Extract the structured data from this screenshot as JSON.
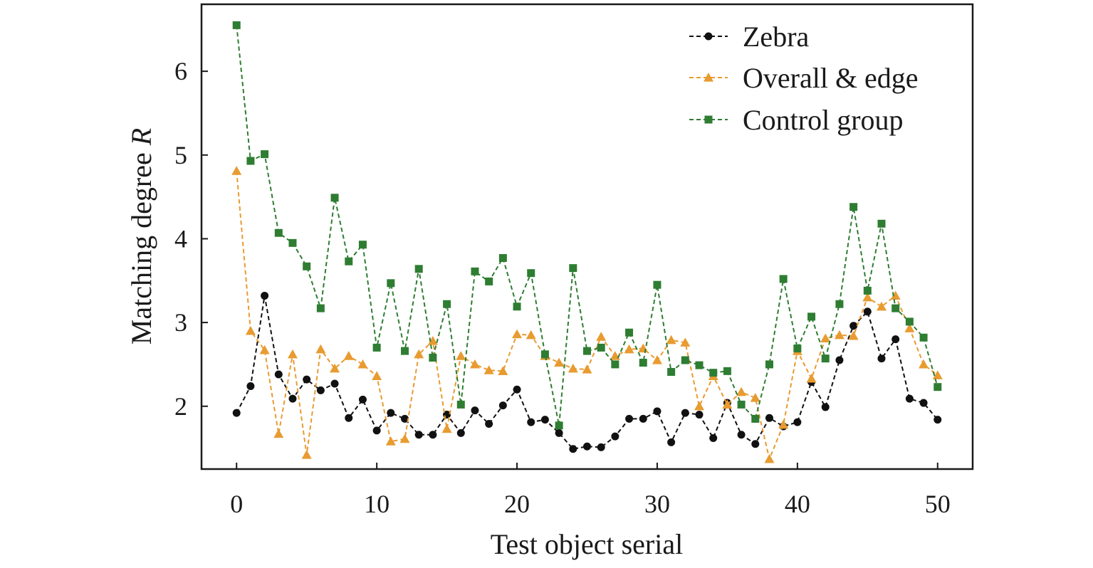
{
  "chart_data": {
    "type": "line",
    "xlabel": "Test object serial",
    "ylabel": "Matching degree ",
    "ylabel_symbol": "R",
    "xlim": [
      -2.5,
      52.5
    ],
    "ylim": [
      1.25,
      6.8
    ],
    "xticks": [
      0,
      10,
      20,
      30,
      40,
      50
    ],
    "yticks": [
      2,
      3,
      4,
      5,
      6
    ],
    "grid": false,
    "legend_position": "top-right",
    "x": [
      0,
      1,
      2,
      3,
      4,
      5,
      6,
      7,
      8,
      9,
      10,
      11,
      12,
      13,
      14,
      15,
      16,
      17,
      18,
      19,
      20,
      21,
      22,
      23,
      24,
      25,
      26,
      27,
      28,
      29,
      30,
      31,
      32,
      33,
      34,
      35,
      36,
      37,
      38,
      39,
      40,
      41,
      42,
      43,
      44,
      45,
      46,
      47,
      48,
      49,
      50
    ],
    "series": [
      {
        "name": "Zebra",
        "color": "#111111",
        "marker": "circle",
        "values": [
          1.92,
          2.24,
          3.32,
          2.38,
          2.09,
          2.32,
          2.19,
          2.27,
          1.86,
          2.08,
          1.71,
          1.92,
          1.85,
          1.66,
          1.66,
          1.9,
          1.68,
          1.95,
          1.79,
          2.01,
          2.2,
          1.81,
          1.84,
          1.68,
          1.49,
          1.52,
          1.51,
          1.64,
          1.85,
          1.85,
          1.94,
          1.57,
          1.92,
          1.9,
          1.62,
          2.04,
          1.66,
          1.55,
          1.86,
          1.76,
          1.81,
          2.29,
          1.99,
          2.55,
          2.96,
          3.13,
          2.57,
          2.8,
          2.09,
          2.04,
          1.84
        ]
      },
      {
        "name": "Overall & edge",
        "color": "#e89b30",
        "marker": "triangle",
        "values": [
          4.81,
          2.9,
          2.67,
          1.67,
          2.62,
          1.42,
          2.68,
          2.45,
          2.6,
          2.5,
          2.36,
          1.58,
          1.61,
          2.62,
          2.78,
          1.73,
          2.6,
          2.5,
          2.43,
          2.42,
          2.86,
          2.85,
          2.6,
          2.52,
          2.45,
          2.44,
          2.83,
          2.6,
          2.68,
          2.69,
          2.55,
          2.79,
          2.76,
          2.0,
          2.36,
          2.02,
          2.17,
          2.1,
          1.37,
          1.78,
          2.66,
          2.33,
          2.81,
          2.85,
          2.84,
          3.3,
          3.19,
          3.32,
          2.93,
          2.5,
          2.37
        ]
      },
      {
        "name": "Control group",
        "color": "#2e7d32",
        "marker": "square",
        "values": [
          6.55,
          4.93,
          5.01,
          4.07,
          3.95,
          3.67,
          3.17,
          4.49,
          3.73,
          3.93,
          2.7,
          3.47,
          2.66,
          3.64,
          2.58,
          3.22,
          2.02,
          3.61,
          3.49,
          3.77,
          3.19,
          3.59,
          2.62,
          1.77,
          3.65,
          2.66,
          2.7,
          2.5,
          2.88,
          2.52,
          3.45,
          2.41,
          2.55,
          2.49,
          2.4,
          2.42,
          2.02,
          1.85,
          2.5,
          3.52,
          2.69,
          3.07,
          2.57,
          3.22,
          4.38,
          3.38,
          4.18,
          3.17,
          3.01,
          2.82,
          2.23
        ]
      }
    ]
  }
}
